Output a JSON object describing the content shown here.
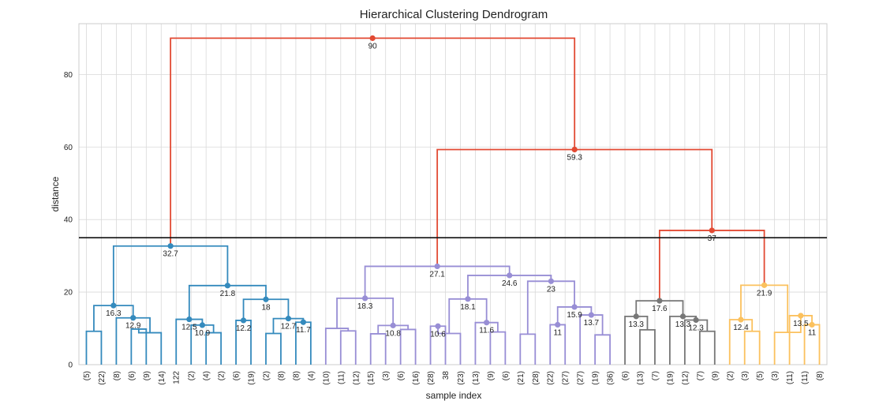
{
  "chart_data": {
    "type": "dendrogram",
    "title": "Hierarchical Clustering Dendrogram",
    "xlabel": "sample index",
    "ylabel": "distance",
    "ylim": [
      0,
      94
    ],
    "y_ticks": [
      "0",
      "20",
      "40",
      "60",
      "80"
    ],
    "cut_line": 35,
    "grid": true,
    "colors": {
      "above_cut": "#e24a33",
      "cluster1": "#348abd",
      "cluster2": "#988ed5",
      "cluster3": "#777777",
      "cluster4": "#fbc15e",
      "cut": "#111111"
    },
    "leaf_labels": [
      "(5)",
      "(22)",
      "(8)",
      "(6)",
      "(9)",
      "(14)",
      "122",
      "(2)",
      "(4)",
      "(2)",
      "(6)",
      "(19)",
      "(2)",
      "(8)",
      "(8)",
      "(4)",
      "(10)",
      "(11)",
      "(12)",
      "(15)",
      "(3)",
      "(6)",
      "(16)",
      "(28)",
      "38",
      "(23)",
      "(13)",
      "(9)",
      "(6)",
      "(21)",
      "(28)",
      "(22)",
      "(27)",
      "(27)",
      "(19)",
      "(36)",
      "(6)",
      "(13)",
      "(7)",
      "(19)",
      "(12)",
      "(7)",
      "(9)",
      "(2)",
      "(3)",
      "(5)",
      "(3)",
      "(11)",
      "(11)",
      "(8)"
    ],
    "merges": [
      {
        "a": 0,
        "b": 1,
        "h": 9.2,
        "c": "cluster1"
      },
      {
        "a": 3,
        "b": 4,
        "h": 9.8,
        "c": "cluster1"
      },
      {
        "a": "n1",
        "b": 5,
        "h": 8.8,
        "c": "cluster1"
      },
      {
        "a": "n2",
        "b": 2,
        "h": 12.9,
        "c": "cluster1",
        "label": "12.9"
      },
      {
        "a": "n0",
        "b": "n3",
        "h": 16.3,
        "c": "cluster1",
        "label": "16.3"
      },
      {
        "a": 8,
        "b": 9,
        "h": 8.8,
        "c": "cluster1"
      },
      {
        "a": 7,
        "b": "n5",
        "h": 10.9,
        "c": "cluster1",
        "label": "10.9"
      },
      {
        "a": 6,
        "b": "n6",
        "h": 12.5,
        "c": "cluster1",
        "label": "12.5"
      },
      {
        "a": 10,
        "b": 11,
        "h": 12.2,
        "c": "cluster1",
        "label": "12.2"
      },
      {
        "a": 12,
        "b": 13,
        "h": 8.6,
        "c": "cluster1"
      },
      {
        "a": 14,
        "b": 15,
        "h": 11.7,
        "c": "cluster1",
        "label": "11.7"
      },
      {
        "a": "n9",
        "b": "n10",
        "h": 12.7,
        "c": "cluster1",
        "label": "12.7"
      },
      {
        "a": "n8",
        "b": "n11",
        "h": 18,
        "c": "cluster1",
        "label": "18"
      },
      {
        "a": "n7",
        "b": "n12",
        "h": 21.8,
        "c": "cluster1",
        "label": "21.8"
      },
      {
        "a": "n4",
        "b": "n13",
        "h": 32.7,
        "c": "cluster1",
        "label": "32.7"
      },
      {
        "a": 17,
        "b": 18,
        "h": 9.3,
        "c": "cluster2"
      },
      {
        "a": 16,
        "b": "n15",
        "h": 10,
        "c": "cluster2"
      },
      {
        "a": 19,
        "b": 20,
        "h": 8.5,
        "c": "cluster2"
      },
      {
        "a": 21,
        "b": 22,
        "h": 9.7,
        "c": "cluster2"
      },
      {
        "a": "n17",
        "b": "n18",
        "h": 10.8,
        "c": "cluster2",
        "label": "10.8"
      },
      {
        "a": "n16",
        "b": "n19",
        "h": 18.3,
        "c": "cluster2",
        "label": "18.3"
      },
      {
        "a": 23,
        "b": 24,
        "h": 10.6,
        "c": "cluster2",
        "label": "10.6"
      },
      {
        "a": "n21",
        "b": 25,
        "h": 8.6,
        "c": "cluster2"
      },
      {
        "a": 27,
        "b": 28,
        "h": 9,
        "c": "cluster2"
      },
      {
        "a": 26,
        "b": "n23",
        "h": 11.6,
        "c": "cluster2",
        "label": "11.6"
      },
      {
        "a": "n22",
        "b": "n24",
        "h": 18.1,
        "c": "cluster2",
        "label": "18.1"
      },
      {
        "a": 29,
        "b": 30,
        "h": 8.4,
        "c": "cluster2"
      },
      {
        "a": 31,
        "b": 32,
        "h": 11,
        "c": "cluster2",
        "label": "11"
      },
      {
        "a": 34,
        "b": 35,
        "h": 8.2,
        "c": "cluster2"
      },
      {
        "a": 33,
        "b": "n28",
        "h": 13.7,
        "c": "cluster2",
        "label": "13.7"
      },
      {
        "a": "n27",
        "b": "n29",
        "h": 15.9,
        "c": "cluster2",
        "label": "15.9"
      },
      {
        "a": "n26",
        "b": "n30",
        "h": 23,
        "c": "cluster2",
        "label": "23"
      },
      {
        "a": "n25",
        "b": "n31",
        "h": 24.6,
        "c": "cluster2",
        "label": "24.6"
      },
      {
        "a": "n20",
        "b": "n32",
        "h": 27.1,
        "c": "cluster2",
        "label": "27.1"
      },
      {
        "a": 37,
        "b": 38,
        "h": 9.6,
        "c": "cluster3"
      },
      {
        "a": 36,
        "b": "n34",
        "h": 13.3,
        "c": "cluster3",
        "label": "13.3"
      },
      {
        "a": 41,
        "b": 42,
        "h": 9.2,
        "c": "cluster3"
      },
      {
        "a": 40,
        "b": "n36",
        "h": 12.3,
        "c": "cluster3",
        "label": "12.3"
      },
      {
        "a": 39,
        "b": "n37",
        "h": 13.3,
        "c": "cluster3",
        "label": "13.3"
      },
      {
        "a": "n35",
        "b": "n38",
        "h": 17.6,
        "c": "cluster3",
        "label": "17.6"
      },
      {
        "a": 44,
        "b": 45,
        "h": 9.2,
        "c": "cluster4"
      },
      {
        "a": 43,
        "b": "n40",
        "h": 12.4,
        "c": "cluster4",
        "label": "12.4"
      },
      {
        "a": 48,
        "b": 49,
        "h": 11,
        "c": "cluster4",
        "label": "11"
      },
      {
        "a": 47,
        "b": "n42",
        "h": 13.5,
        "c": "cluster4",
        "label": "13.5"
      },
      {
        "a": 46,
        "b": "n43",
        "h": 8.9,
        "c": "cluster4"
      },
      {
        "a": "n41",
        "b": "n44",
        "h": 21.9,
        "c": "cluster4",
        "label": "21.9"
      },
      {
        "a": "n39",
        "b": "n45",
        "h": 37,
        "c": "above_cut",
        "label": "37"
      },
      {
        "a": "n33",
        "b": "n46",
        "h": 59.3,
        "c": "above_cut",
        "label": "59.3"
      },
      {
        "a": "n14",
        "b": "n47",
        "h": 90,
        "c": "above_cut",
        "label": "90"
      }
    ]
  }
}
